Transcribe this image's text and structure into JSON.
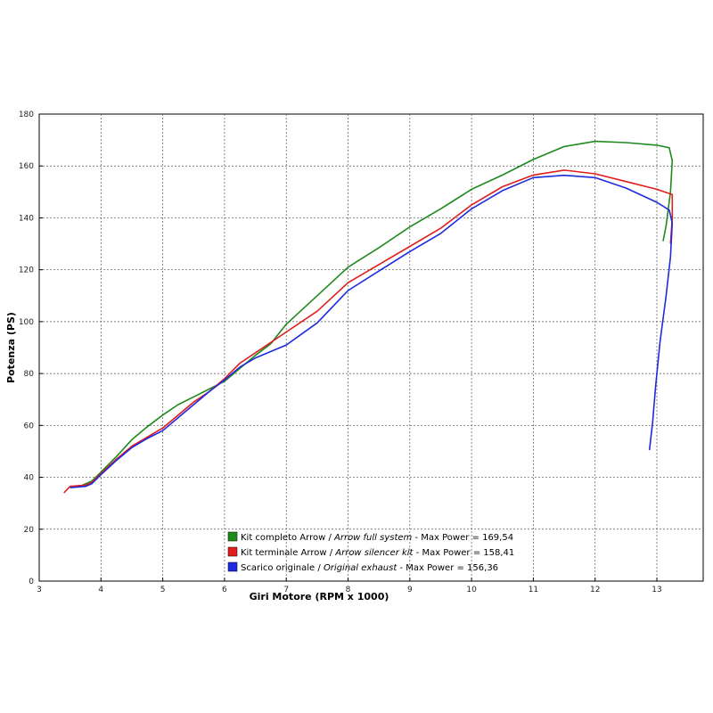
{
  "chart_data": {
    "type": "line",
    "xlabel": "Giri Motore (RPM x 1000)",
    "ylabel": "Potenza (PS)",
    "xlim": [
      3,
      13.75
    ],
    "ylim": [
      0,
      180
    ],
    "xticks": [
      3,
      4,
      5,
      6,
      7,
      8,
      9,
      10,
      11,
      12,
      13
    ],
    "yticks": [
      0,
      20,
      40,
      60,
      80,
      100,
      120,
      140,
      160,
      180
    ],
    "grid": true,
    "legend_position": "bottom-center",
    "series": [
      {
        "key": "green",
        "color": "#1e8a1e",
        "label_it": "Kit completo Arrow",
        "sep": " / ",
        "label_en": "Arrow full system",
        "max_text": " - Max Power = 169,54",
        "points": [
          [
            3.7,
            37.0
          ],
          [
            3.85,
            38.5
          ],
          [
            4.0,
            42.0
          ],
          [
            4.25,
            48.0
          ],
          [
            4.5,
            54.5
          ],
          [
            4.75,
            59.5
          ],
          [
            5.0,
            64.0
          ],
          [
            5.25,
            68.0
          ],
          [
            5.5,
            71.0
          ],
          [
            5.75,
            74.0
          ],
          [
            6.0,
            77.0
          ],
          [
            6.25,
            82.0
          ],
          [
            6.5,
            87.0
          ],
          [
            6.75,
            91.5
          ],
          [
            7.0,
            99.0
          ],
          [
            7.5,
            110.0
          ],
          [
            8.0,
            121.0
          ],
          [
            8.5,
            128.5
          ],
          [
            9.0,
            136.5
          ],
          [
            9.5,
            143.5
          ],
          [
            10.0,
            151.0
          ],
          [
            10.5,
            156.5
          ],
          [
            11.0,
            162.5
          ],
          [
            11.5,
            167.5
          ],
          [
            12.0,
            169.5
          ],
          [
            12.5,
            169.0
          ],
          [
            13.0,
            168.0
          ],
          [
            13.2,
            167.0
          ],
          [
            13.25,
            162.0
          ],
          [
            13.22,
            150.0
          ],
          [
            13.15,
            137.0
          ],
          [
            13.1,
            131.0
          ]
        ]
      },
      {
        "key": "red",
        "color": "#e01e1e",
        "label_it": "Kit terminale Arrow",
        "sep": " / ",
        "label_en": "Arrow silencer kit",
        "max_text": " - Max Power = 158,41",
        "points": [
          [
            3.4,
            34.0
          ],
          [
            3.5,
            36.5
          ],
          [
            3.75,
            37.0
          ],
          [
            3.85,
            38.0
          ],
          [
            4.0,
            41.5
          ],
          [
            4.25,
            47.0
          ],
          [
            4.5,
            52.0
          ],
          [
            4.75,
            55.5
          ],
          [
            5.0,
            59.0
          ],
          [
            5.25,
            64.0
          ],
          [
            5.5,
            69.0
          ],
          [
            5.75,
            73.0
          ],
          [
            6.0,
            78.0
          ],
          [
            6.25,
            84.0
          ],
          [
            6.5,
            88.0
          ],
          [
            6.75,
            92.0
          ],
          [
            7.0,
            96.0
          ],
          [
            7.5,
            104.0
          ],
          [
            8.0,
            115.0
          ],
          [
            8.5,
            122.0
          ],
          [
            9.0,
            129.0
          ],
          [
            9.5,
            136.0
          ],
          [
            10.0,
            145.0
          ],
          [
            10.5,
            152.0
          ],
          [
            11.0,
            156.5
          ],
          [
            11.5,
            158.4
          ],
          [
            12.0,
            157.0
          ],
          [
            12.5,
            154.0
          ],
          [
            13.0,
            151.0
          ],
          [
            13.25,
            149.0
          ],
          [
            13.25,
            140.0
          ],
          [
            13.22,
            130.0
          ]
        ]
      },
      {
        "key": "blue",
        "color": "#1e2ae0",
        "label_it": "Scarico originale",
        "sep": " / ",
        "label_en": "Original exhaust",
        "max_text": " - Max Power = 156,36",
        "points": [
          [
            3.5,
            36.0
          ],
          [
            3.75,
            36.5
          ],
          [
            3.85,
            37.5
          ],
          [
            4.0,
            41.0
          ],
          [
            4.25,
            46.5
          ],
          [
            4.5,
            51.5
          ],
          [
            4.75,
            55.0
          ],
          [
            5.0,
            58.0
          ],
          [
            5.25,
            63.0
          ],
          [
            5.5,
            68.0
          ],
          [
            5.75,
            73.0
          ],
          [
            6.0,
            77.5
          ],
          [
            6.25,
            82.5
          ],
          [
            6.5,
            86.0
          ],
          [
            6.75,
            88.5
          ],
          [
            7.0,
            91.0
          ],
          [
            7.5,
            99.5
          ],
          [
            8.0,
            112.0
          ],
          [
            8.5,
            119.5
          ],
          [
            9.0,
            127.0
          ],
          [
            9.5,
            134.0
          ],
          [
            10.0,
            143.5
          ],
          [
            10.5,
            150.5
          ],
          [
            11.0,
            155.5
          ],
          [
            11.5,
            156.4
          ],
          [
            12.0,
            155.5
          ],
          [
            12.5,
            151.5
          ],
          [
            13.0,
            146.0
          ],
          [
            13.2,
            143.0
          ],
          [
            13.25,
            138.0
          ],
          [
            13.22,
            125.0
          ],
          [
            13.15,
            110.0
          ],
          [
            13.05,
            92.0
          ],
          [
            12.98,
            75.0
          ],
          [
            12.93,
            61.0
          ],
          [
            12.88,
            50.5
          ]
        ]
      }
    ]
  }
}
